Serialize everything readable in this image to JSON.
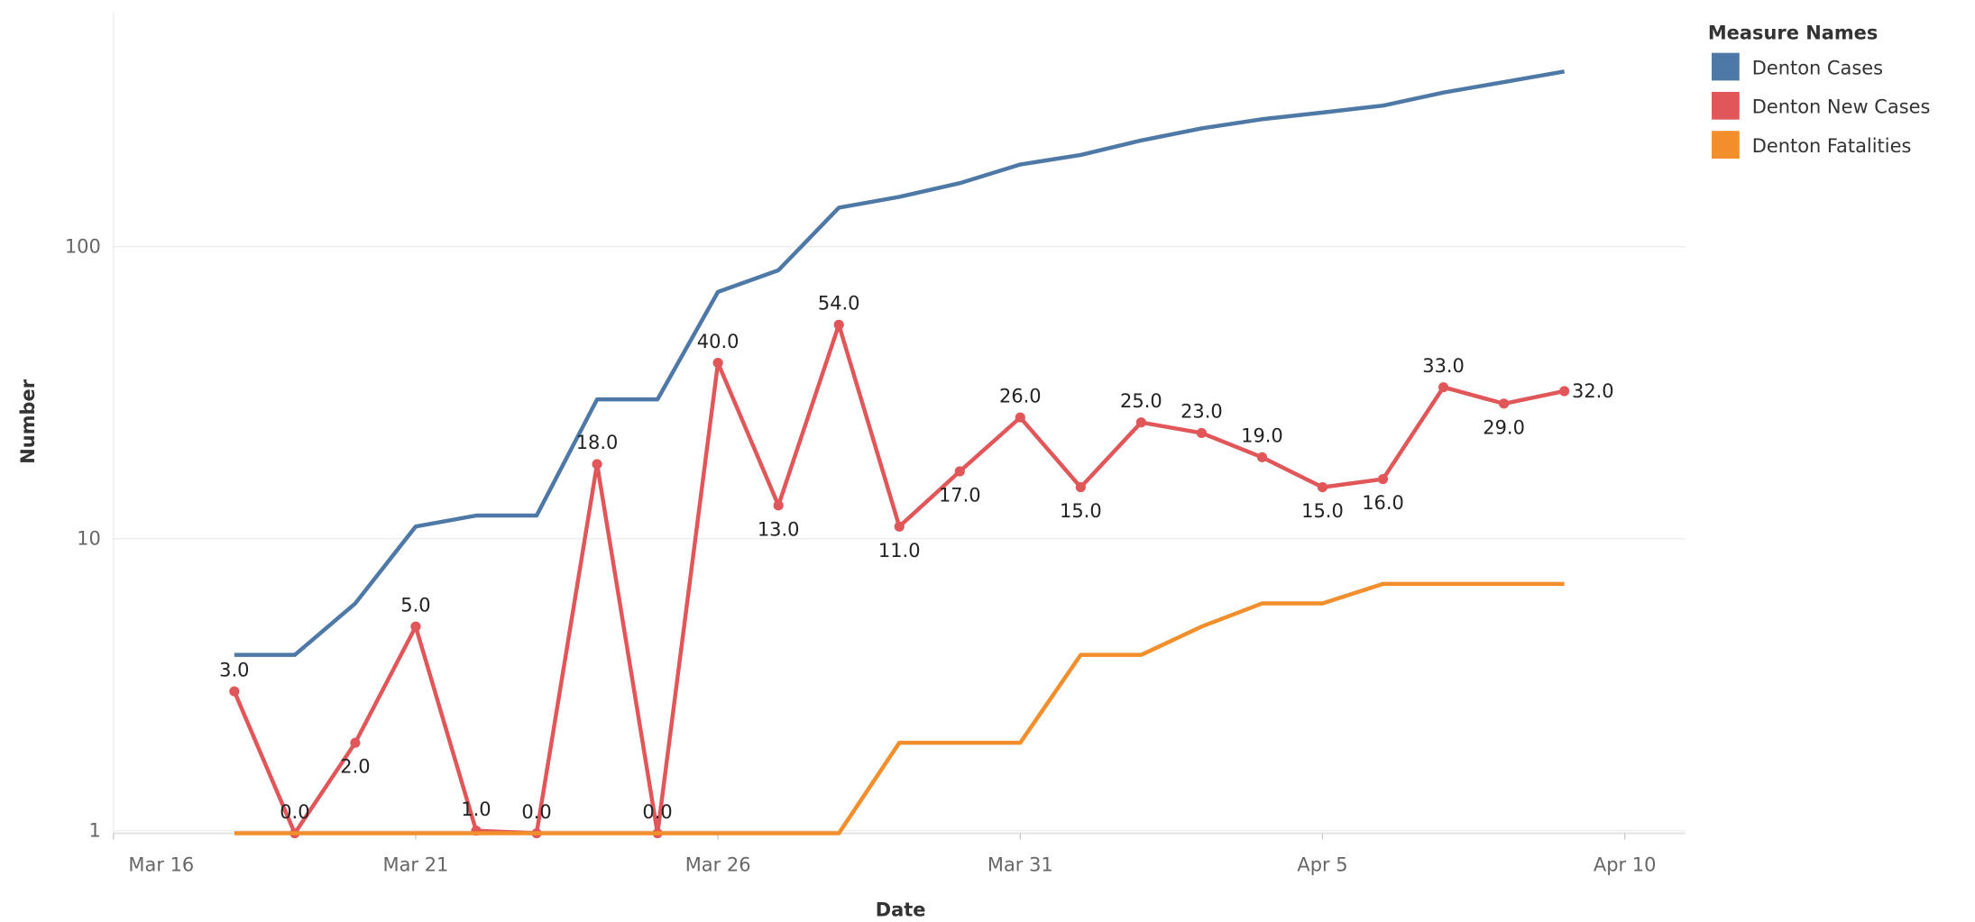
{
  "chart_data": {
    "type": "line",
    "x_label": "Date",
    "y_label": "Number",
    "legend_title": "Measure Names",
    "legend": "right",
    "log_y": true,
    "grid": true,
    "categories": [
      "Mar 16",
      null,
      null,
      null,
      null,
      "Mar 21",
      null,
      null,
      null,
      null,
      "Mar 26",
      null,
      null,
      null,
      null,
      "Mar 31",
      null,
      null,
      null,
      null,
      "Apr 5",
      null,
      null,
      null,
      null,
      "Apr 10"
    ],
    "ylim": [
      0.98,
      633
    ],
    "yticks": [
      1,
      10,
      100
    ],
    "series": [
      {
        "name": "Denton Cases",
        "color": "#4e79a7",
        "markers": false,
        "values": [
          null,
          null,
          4,
          4,
          6,
          11,
          12,
          12,
          30,
          30,
          70,
          83,
          136,
          148,
          165,
          191,
          206,
          231,
          254,
          273,
          288,
          304,
          337,
          366,
          398,
          null
        ]
      },
      {
        "name": "Denton New Cases",
        "color": "#e15759",
        "markers": true,
        "values": [
          null,
          null,
          3,
          0,
          2,
          5,
          1,
          0,
          18,
          0,
          40,
          13,
          54,
          11,
          17,
          26,
          15,
          25,
          23,
          19,
          15,
          16,
          33,
          29,
          32,
          null
        ],
        "value_labels": [
          null,
          null,
          "3.0",
          "0.0",
          "2.0",
          "5.0",
          "1.0",
          "0.0",
          "18.0",
          "0.0",
          "40.0",
          "13.0",
          "54.0",
          "11.0",
          "17.0",
          "26.0",
          "15.0",
          "25.0",
          "23.0",
          "19.0",
          "15.0",
          "16.0",
          "33.0",
          "29.0",
          "32.0",
          null
        ]
      },
      {
        "name": "Denton Fatalities",
        "color": "#f28e2b",
        "markers": false,
        "values": [
          null,
          null,
          0,
          0,
          0,
          0,
          0,
          0,
          0,
          0,
          0,
          0,
          0,
          2,
          2,
          2,
          4,
          4,
          5,
          6,
          6,
          7,
          7,
          7,
          7,
          null
        ]
      }
    ]
  }
}
